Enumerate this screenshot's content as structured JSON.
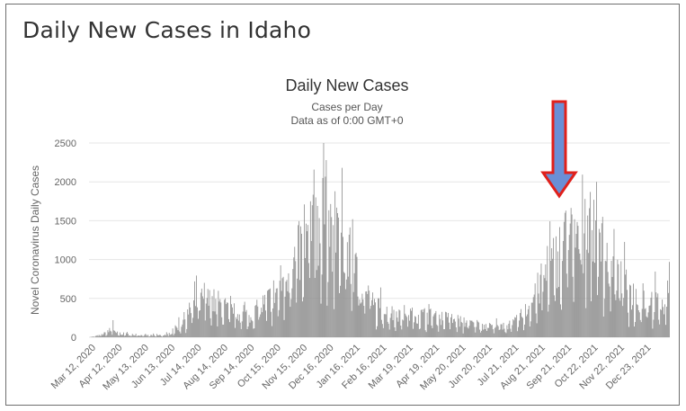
{
  "panel": {
    "title": "Daily New Cases in Idaho"
  },
  "colors": {
    "bars": "#8e8e8e",
    "arrow_fill": "#6a8fd6",
    "arrow_stroke": "#e0201b",
    "grid": "#e6e6e6"
  },
  "chart_data": {
    "type": "bar",
    "title": "Daily New Cases",
    "subtitle": "Cases per Day",
    "subtitle2": "Data as of 0:00 GMT+0",
    "ylabel": "Novel Coronavirus Daily Cases",
    "xlabel": "",
    "ylim": [
      0,
      2500
    ],
    "yticks": [
      0,
      500,
      1000,
      1500,
      2000,
      2500
    ],
    "grid": true,
    "legend": "none",
    "x_start": "2020-03-12",
    "x_end": "2022-01-03",
    "xtick_labels": [
      "Mar 12, 2020",
      "Apr 12, 2020",
      "May 13, 2020",
      "Jun 13, 2020",
      "Jul 14, 2020",
      "Aug 14, 2020",
      "Sep 14, 2020",
      "Oct 15, 2020",
      "Nov 15, 2020",
      "Dec 16, 2020",
      "Jan 16, 2021",
      "Feb 16, 2021",
      "Mar 19, 2021",
      "Apr 19, 2021",
      "May 20, 2021",
      "Jun 20, 2021",
      "Jul 21, 2021",
      "Aug 21, 2021",
      "Sep 21, 2021",
      "Oct 22, 2021",
      "Nov 22, 2021",
      "Dec 23, 2021"
    ],
    "trend": [
      [
        "2020-03-12",
        0
      ],
      [
        "2020-03-25",
        30
      ],
      [
        "2020-04-05",
        90
      ],
      [
        "2020-04-12",
        60
      ],
      [
        "2020-04-25",
        40
      ],
      [
        "2020-05-13",
        25
      ],
      [
        "2020-06-05",
        30
      ],
      [
        "2020-06-13",
        60
      ],
      [
        "2020-06-25",
        200
      ],
      [
        "2020-07-10",
        450
      ],
      [
        "2020-07-20",
        520
      ],
      [
        "2020-08-05",
        480
      ],
      [
        "2020-08-20",
        360
      ],
      [
        "2020-09-05",
        300
      ],
      [
        "2020-09-14",
        320
      ],
      [
        "2020-10-01",
        500
      ],
      [
        "2020-10-15",
        720
      ],
      [
        "2020-10-30",
        1000
      ],
      [
        "2020-11-15",
        1350
      ],
      [
        "2020-11-28",
        1500
      ],
      [
        "2020-12-05",
        1620
      ],
      [
        "2020-12-16",
        1480
      ],
      [
        "2021-01-01",
        1150
      ],
      [
        "2021-01-16",
        700
      ],
      [
        "2021-02-01",
        420
      ],
      [
        "2021-02-16",
        330
      ],
      [
        "2021-03-19",
        320
      ],
      [
        "2021-04-19",
        270
      ],
      [
        "2021-05-20",
        200
      ],
      [
        "2021-06-20",
        140
      ],
      [
        "2021-07-10",
        200
      ],
      [
        "2021-07-21",
        330
      ],
      [
        "2021-08-05",
        650
      ],
      [
        "2021-08-21",
        1000
      ],
      [
        "2021-09-05",
        1300
      ],
      [
        "2021-09-21",
        1450
      ],
      [
        "2021-10-05",
        1450
      ],
      [
        "2021-10-22",
        1080
      ],
      [
        "2021-11-05",
        800
      ],
      [
        "2021-11-22",
        580
      ],
      [
        "2021-12-10",
        520
      ],
      [
        "2021-12-23",
        470
      ],
      [
        "2021-12-28",
        400
      ],
      [
        "2022-01-01",
        800
      ],
      [
        "2022-01-03",
        900
      ]
    ],
    "spikes": [
      [
        "2020-12-07",
        2280
      ],
      [
        "2020-12-03",
        2050
      ],
      [
        "2020-11-25",
        1800
      ],
      [
        "2020-11-19",
        1750
      ],
      [
        "2020-12-21",
        1540
      ],
      [
        "2021-01-06",
        1520
      ],
      [
        "2021-09-13",
        1580
      ],
      [
        "2021-09-28",
        1780
      ],
      [
        "2021-10-04",
        1870
      ],
      [
        "2021-10-11",
        2000
      ],
      [
        "2021-10-08",
        1770
      ],
      [
        "2021-10-18",
        1550
      ],
      [
        "2021-11-05",
        940
      ],
      [
        "2021-11-22",
        690
      ],
      [
        "2022-01-02",
        970
      ],
      [
        "2020-07-21",
        700
      ],
      [
        "2020-04-08",
        220
      ],
      [
        "2021-08-12",
        800
      ]
    ],
    "annotation": {
      "type": "arrow",
      "x": "2021-08-30",
      "points_at": "autumn 2021 surge"
    }
  }
}
